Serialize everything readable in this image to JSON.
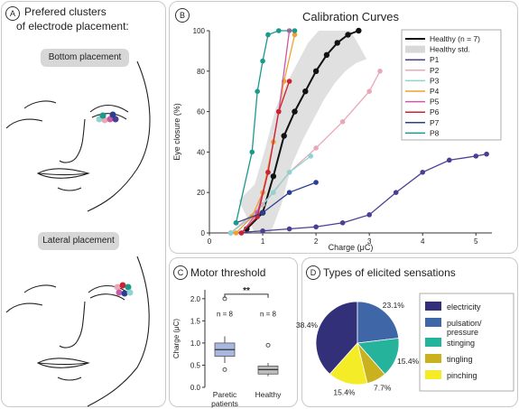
{
  "panel_a": {
    "badge": "A",
    "title_line1": "Prefered clusters",
    "title_line2": "of electrode placement:",
    "bottom_label": "Bottom placement",
    "lateral_label": "Lateral placement"
  },
  "panel_b": {
    "badge": "B"
  },
  "panel_c": {
    "badge": "C"
  },
  "panel_d": {
    "badge": "D"
  },
  "chart_data": [
    {
      "type": "line",
      "title": "Calibration Curves",
      "xlabel": "Charge (μC)",
      "ylabel": "Eye closure (%)",
      "xlim": [
        0,
        5.3
      ],
      "ylim": [
        0,
        100
      ],
      "xticks": [
        "0",
        "1",
        "2",
        "3",
        "4",
        "5"
      ],
      "yticks": [
        "0",
        "20",
        "40",
        "60",
        "80",
        "100"
      ],
      "legend_position": "top-right",
      "legend": [
        "Healthy (n = 7)",
        "Healthy std.",
        "P1",
        "P2",
        "P3",
        "P4",
        "P5",
        "P6",
        "P7",
        "P8"
      ],
      "series": [
        {
          "name": "Healthy (n = 7)",
          "color": "#111111",
          "x": [
            0.7,
            1.0,
            1.2,
            1.4,
            1.6,
            1.8,
            2.0,
            2.2,
            2.4,
            2.6,
            2.8
          ],
          "y": [
            2,
            10,
            28,
            48,
            60,
            70,
            80,
            88,
            94,
            98,
            100
          ]
        },
        {
          "name": "P1",
          "color": "#4a3f93",
          "x": [
            0.4,
            1.0,
            1.5,
            2.0,
            2.5,
            3.0,
            3.5,
            4.0,
            4.5,
            5.0,
            5.2
          ],
          "y": [
            0,
            1,
            2,
            3,
            5,
            9,
            20,
            30,
            36,
            38,
            39
          ]
        },
        {
          "name": "P2",
          "color": "#e8a8b8",
          "x": [
            0.4,
            1.0,
            1.5,
            2.0,
            2.5,
            3.0,
            3.2
          ],
          "y": [
            0,
            14,
            30,
            42,
            55,
            70,
            80
          ]
        },
        {
          "name": "P3",
          "color": "#8fd3d0",
          "x": [
            0.4,
            0.8,
            1.2,
            1.5,
            1.9
          ],
          "y": [
            0,
            8,
            20,
            30,
            38
          ]
        },
        {
          "name": "P4",
          "color": "#f0a030",
          "x": [
            0.5,
            0.8,
            1.0,
            1.2,
            1.4,
            1.6
          ],
          "y": [
            0,
            8,
            20,
            45,
            75,
            98
          ]
        },
        {
          "name": "P5",
          "color": "#c95aa8",
          "x": [
            0.6,
            0.9,
            1.1,
            1.3,
            1.5
          ],
          "y": [
            0,
            10,
            30,
            60,
            100
          ]
        },
        {
          "name": "P6",
          "color": "#cc2233",
          "x": [
            0.6,
            0.9,
            1.1,
            1.3,
            1.5
          ],
          "y": [
            0,
            8,
            30,
            60,
            75
          ]
        },
        {
          "name": "P7",
          "color": "#2a3f8f",
          "x": [
            0.5,
            1.0,
            1.5,
            2.0
          ],
          "y": [
            5,
            10,
            20,
            25
          ]
        },
        {
          "name": "P8",
          "color": "#1a9a8a",
          "x": [
            0.5,
            0.8,
            0.9,
            1.0,
            1.1,
            1.3,
            1.6
          ],
          "y": [
            5,
            40,
            70,
            85,
            98,
            100,
            100
          ]
        }
      ]
    },
    {
      "type": "box",
      "title": "Motor threshold",
      "ylabel": "Charge (μC)",
      "ylim": [
        0,
        2.2
      ],
      "yticks": [
        "0.0",
        "0.5",
        "1.0",
        "1.5",
        "2.0"
      ],
      "categories": [
        "Paretic patients",
        "Healthy"
      ],
      "category_lines": [
        [
          "Paretic",
          "patients"
        ],
        [
          "Healthy"
        ]
      ],
      "n_labels": [
        "n = 8",
        "n = 8"
      ],
      "significance": "**",
      "boxes": [
        {
          "q1": 0.7,
          "median": 0.85,
          "q3": 1.0,
          "whisker_low": 0.55,
          "whisker_high": 1.15,
          "outliers": [
            0.4,
            2.0
          ],
          "color": "#a9b8e0"
        },
        {
          "q1": 0.3,
          "median": 0.4,
          "q3": 0.48,
          "whisker_low": 0.25,
          "whisker_high": 0.55,
          "outliers": [
            0.95
          ],
          "color": "#bdbdbd"
        }
      ]
    },
    {
      "type": "pie",
      "title": "Types of elicited sensations",
      "slices": [
        {
          "label": "electricity",
          "value": 38.4,
          "color": "#33307a",
          "display": "38.4%"
        },
        {
          "label": "pulsation/ pressure",
          "value": 23.1,
          "color": "#3f67a8",
          "display": "23.1%"
        },
        {
          "label": "stinging",
          "value": 15.4,
          "color": "#26b39b",
          "display": "15.4%"
        },
        {
          "label": "tingling",
          "value": 7.7,
          "color": "#c9b21e",
          "display": "7.7%"
        },
        {
          "label": "pinching",
          "value": 15.4,
          "color": "#f4ec27",
          "display": "15.4%"
        }
      ],
      "legend_lines": [
        [
          "electricity"
        ],
        [
          "pulsation/",
          "pressure"
        ],
        [
          "stinging"
        ],
        [
          "tingling"
        ],
        [
          "pinching"
        ]
      ]
    }
  ]
}
